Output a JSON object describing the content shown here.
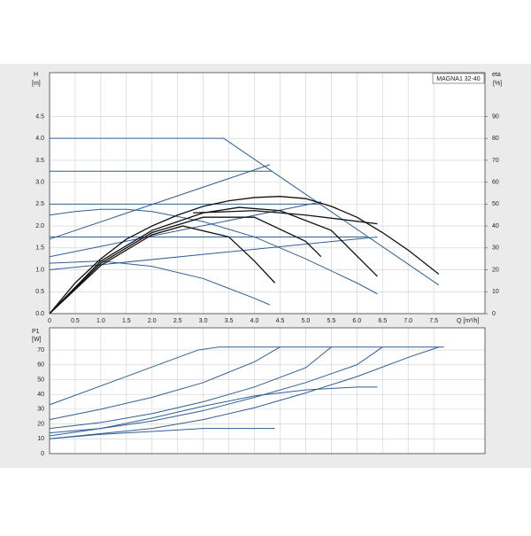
{
  "chart_data": [
    {
      "type": "line",
      "model": "MAGNA1 32-40",
      "ylabel": "H",
      "ylabel_unit": "[m]",
      "y2label": "eta",
      "y2label_unit": "[%]",
      "xlabel": "Q [m³/h]",
      "xlim": [
        0,
        8.5
      ],
      "xticks": [
        0,
        0.5,
        {
          "value": 1,
          "label": "1.0"
        },
        1.5,
        {
          "value": 2,
          "label": "2.0"
        },
        2.5,
        {
          "value": 3,
          "label": "3.0"
        },
        3.5,
        {
          "value": 4,
          "label": "4.0"
        },
        4.5,
        {
          "value": 5,
          "label": "5.0"
        },
        5.5,
        {
          "value": 6,
          "label": "6.0"
        },
        6.5,
        {
          "value": 7,
          "label": "7.0"
        },
        7.5
      ],
      "ylim": [
        0,
        5.5
      ],
      "yticks": [
        {
          "value": 0,
          "label": "0.0"
        },
        0.5,
        {
          "value": 1,
          "label": "1.0"
        },
        1.5,
        {
          "value": 2,
          "label": "2.0"
        },
        2.5,
        {
          "value": 3,
          "label": "3.0"
        },
        3.5,
        {
          "value": 4,
          "label": "4.0"
        },
        4.5
      ],
      "y2lim": [
        0,
        110
      ],
      "y2ticks": [
        0,
        10,
        20,
        30,
        40,
        50,
        60,
        70,
        80,
        90
      ],
      "grid": true,
      "series": [
        {
          "color": "#2f5f94",
          "x": [
            0,
            3.4,
            7.6
          ],
          "values": [
            4.0,
            4.0,
            0.65
          ]
        },
        {
          "color": "#2f5f94",
          "x": [
            0,
            4.35
          ],
          "values": [
            3.25,
            3.25
          ]
        },
        {
          "color": "#2f5f94",
          "x": [
            0,
            5.3
          ],
          "values": [
            2.5,
            2.5
          ]
        },
        {
          "color": "#2f5f94",
          "x": [
            0,
            6.2
          ],
          "values": [
            1.75,
            1.75
          ]
        },
        {
          "color": "#2f5f94",
          "x": [
            0,
            4.3
          ],
          "values": [
            1.7,
            3.4
          ]
        },
        {
          "color": "#2f5f94",
          "x": [
            0,
            5.3
          ],
          "values": [
            1.3,
            2.55
          ]
        },
        {
          "color": "#2f5f94",
          "x": [
            0,
            6.4
          ],
          "values": [
            1.0,
            1.75
          ]
        },
        {
          "color": "#2f5f94",
          "x": [
            0,
            0.5,
            1,
            1.5,
            2,
            3,
            4,
            5,
            6,
            6.4
          ],
          "values": [
            2.25,
            2.33,
            2.38,
            2.38,
            2.33,
            2.1,
            1.75,
            1.25,
            0.7,
            0.45
          ]
        },
        {
          "color": "#2f5f94",
          "x": [
            0,
            1,
            2,
            3,
            4,
            4.3
          ],
          "values": [
            1.15,
            1.2,
            1.08,
            0.8,
            0.35,
            0.2
          ]
        },
        {
          "color": "#111111",
          "axis": "y2",
          "x": [
            0,
            0.5,
            1,
            1.5,
            2,
            2.5,
            3,
            3.5,
            4,
            4.5,
            5,
            5.5,
            6,
            6.5,
            7,
            7.6
          ],
          "values": [
            0,
            14,
            25,
            34,
            40,
            45,
            49,
            51.5,
            53,
            53.5,
            52.5,
            49,
            44,
            37,
            29,
            18
          ]
        },
        {
          "color": "#111111",
          "axis": "y2",
          "x": [
            0,
            1,
            2,
            3,
            3.7,
            4.5,
            5.5,
            6.4
          ],
          "values": [
            0,
            24,
            38,
            46,
            48.5,
            47,
            38,
            17
          ]
        },
        {
          "color": "#111111",
          "axis": "y2",
          "x": [
            0,
            1,
            2,
            3,
            4,
            5,
            5.3
          ],
          "values": [
            0,
            23,
            37,
            44,
            44,
            33,
            26
          ]
        },
        {
          "color": "#111111",
          "axis": "y2",
          "x": [
            0,
            1,
            2,
            2.6,
            3.5,
            4,
            4.4
          ],
          "values": [
            0,
            22,
            36,
            40,
            35,
            24,
            14
          ]
        },
        {
          "color": "#111111",
          "axis": "y2",
          "x": [
            2.8,
            4,
            5,
            6.4
          ],
          "values": [
            46,
            47,
            45,
            41
          ]
        }
      ]
    },
    {
      "type": "line",
      "ylabel": "P1",
      "ylabel_unit": "[W]",
      "xlim": [
        0,
        8.5
      ],
      "ylim": [
        0,
        85
      ],
      "yticks": [
        0,
        10,
        20,
        30,
        40,
        50,
        60,
        70
      ],
      "grid": true,
      "series": [
        {
          "color": "#2f5f94",
          "x": [
            0,
            2.9,
            3.3,
            7.7
          ],
          "values": [
            33,
            70,
            72,
            72
          ]
        },
        {
          "color": "#2f5f94",
          "x": [
            0,
            1,
            2,
            3,
            4,
            4.5
          ],
          "values": [
            23,
            30,
            38,
            48,
            62,
            72
          ]
        },
        {
          "color": "#2f5f94",
          "x": [
            0,
            1,
            2,
            3,
            4,
            5,
            5.5
          ],
          "values": [
            17,
            21,
            27,
            35,
            45,
            58,
            72
          ]
        },
        {
          "color": "#2f5f94",
          "x": [
            0,
            1,
            2,
            3,
            4,
            5,
            6,
            6.5
          ],
          "values": [
            14,
            17,
            22,
            29,
            38,
            48,
            60,
            72
          ]
        },
        {
          "color": "#2f5f94",
          "x": [
            0,
            2,
            3,
            4,
            5,
            6,
            7,
            7.6
          ],
          "values": [
            10,
            17,
            23,
            31,
            41,
            52,
            65,
            72
          ]
        },
        {
          "color": "#2f5f94",
          "x": [
            0,
            1,
            2,
            3,
            4,
            5,
            6,
            6.4
          ],
          "values": [
            12,
            17,
            24,
            32,
            39,
            43,
            45,
            45
          ]
        },
        {
          "color": "#2f5f94",
          "x": [
            0,
            1,
            2,
            3,
            4,
            4.4
          ],
          "values": [
            10,
            13,
            15,
            17,
            17,
            17
          ]
        }
      ]
    }
  ]
}
